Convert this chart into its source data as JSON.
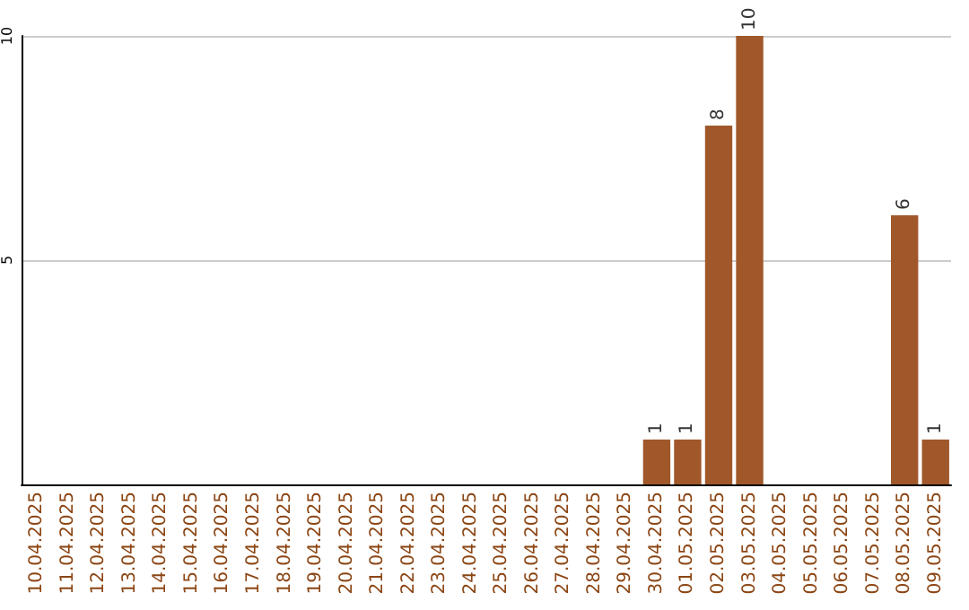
{
  "chart_data": {
    "type": "bar",
    "categories": [
      "10.04.2025",
      "11.04.2025",
      "12.04.2025",
      "13.04.2025",
      "14.04.2025",
      "15.04.2025",
      "16.04.2025",
      "17.04.2025",
      "18.04.2025",
      "19.04.2025",
      "20.04.2025",
      "21.04.2025",
      "22.04.2025",
      "23.04.2025",
      "24.04.2025",
      "25.04.2025",
      "26.04.2025",
      "27.04.2025",
      "28.04.2025",
      "29.04.2025",
      "30.04.2025",
      "01.05.2025",
      "02.05.2025",
      "03.05.2025",
      "04.05.2025",
      "05.05.2025",
      "06.05.2025",
      "07.05.2025",
      "08.05.2025",
      "09.05.2025"
    ],
    "values": [
      0,
      0,
      0,
      0,
      0,
      0,
      0,
      0,
      0,
      0,
      0,
      0,
      0,
      0,
      0,
      0,
      0,
      0,
      0,
      0,
      1,
      1,
      8,
      10,
      0,
      0,
      0,
      0,
      6,
      1
    ],
    "value_labels": [
      null,
      null,
      null,
      null,
      null,
      null,
      null,
      null,
      null,
      null,
      null,
      null,
      null,
      null,
      null,
      null,
      null,
      null,
      null,
      null,
      "1",
      "1",
      "8",
      "10",
      null,
      null,
      null,
      null,
      "6",
      "1"
    ],
    "color": "#a0582a",
    "ylim": [
      0,
      10
    ],
    "yticks": [
      5,
      10
    ],
    "grid": "y"
  }
}
